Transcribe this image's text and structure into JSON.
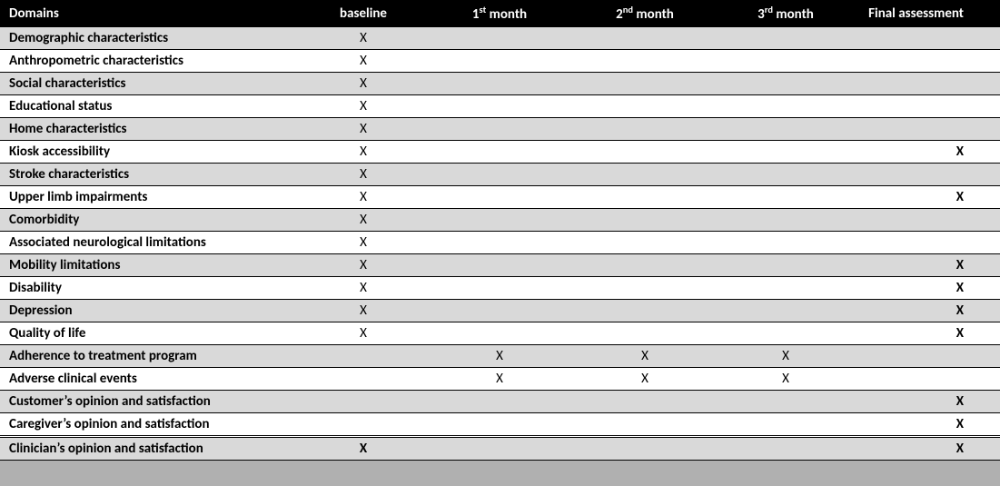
{
  "table": {
    "background_shaded": "#d9d9d9",
    "background_plain": "#ffffff",
    "header_bg": "#000000",
    "header_fg": "#ffffff",
    "mark": "X",
    "columns": [
      {
        "key": "domain",
        "label": "Domains",
        "class": "col-domains"
      },
      {
        "key": "baseline",
        "label": "baseline",
        "class": "col-baseline"
      },
      {
        "key": "m1",
        "label_html": "1<sup>st</sup> month",
        "class": "col-m1"
      },
      {
        "key": "m2",
        "label_html": "2<sup>nd</sup> month",
        "class": "col-m2"
      },
      {
        "key": "m3",
        "label_html": "3<sup>rd</sup> month",
        "class": "col-m3"
      },
      {
        "key": "final",
        "label": "Final assessment",
        "class": "col-final"
      }
    ],
    "rows": [
      {
        "domain": "Demographic characteristics",
        "baseline": true,
        "m1": false,
        "m2": false,
        "m3": false,
        "final": false,
        "final_bold": false,
        "shaded": true
      },
      {
        "domain": "Anthropometric characteristics",
        "baseline": true,
        "m1": false,
        "m2": false,
        "m3": false,
        "final": false,
        "final_bold": false,
        "shaded": false
      },
      {
        "domain": "Social characteristics",
        "baseline": true,
        "m1": false,
        "m2": false,
        "m3": false,
        "final": false,
        "final_bold": false,
        "shaded": true
      },
      {
        "domain": "Educational status",
        "baseline": true,
        "m1": false,
        "m2": false,
        "m3": false,
        "final": false,
        "final_bold": false,
        "shaded": false
      },
      {
        "domain": "Home characteristics",
        "baseline": true,
        "m1": false,
        "m2": false,
        "m3": false,
        "final": false,
        "final_bold": false,
        "shaded": true
      },
      {
        "domain": "Kiosk accessibility",
        "baseline": true,
        "m1": false,
        "m2": false,
        "m3": false,
        "final": true,
        "final_bold": true,
        "shaded": false
      },
      {
        "domain": "Stroke characteristics",
        "baseline": true,
        "m1": false,
        "m2": false,
        "m3": false,
        "final": false,
        "final_bold": false,
        "shaded": true
      },
      {
        "domain": "Upper limb impairments",
        "baseline": true,
        "m1": false,
        "m2": false,
        "m3": false,
        "final": true,
        "final_bold": true,
        "shaded": false
      },
      {
        "domain": "Comorbidity",
        "baseline": true,
        "m1": false,
        "m2": false,
        "m3": false,
        "final": false,
        "final_bold": false,
        "shaded": true
      },
      {
        "domain": "Associated neurological limitations",
        "baseline": true,
        "m1": false,
        "m2": false,
        "m3": false,
        "final": false,
        "final_bold": false,
        "shaded": false
      },
      {
        "domain": "Mobility limitations",
        "baseline": true,
        "m1": false,
        "m2": false,
        "m3": false,
        "final": true,
        "final_bold": true,
        "shaded": true
      },
      {
        "domain": "Disability",
        "baseline": true,
        "m1": false,
        "m2": false,
        "m3": false,
        "final": true,
        "final_bold": true,
        "shaded": false
      },
      {
        "domain": "Depression",
        "baseline": true,
        "m1": false,
        "m2": false,
        "m3": false,
        "final": true,
        "final_bold": true,
        "shaded": true
      },
      {
        "domain": "Quality of life",
        "baseline": true,
        "m1": false,
        "m2": false,
        "m3": false,
        "final": true,
        "final_bold": true,
        "shaded": false
      },
      {
        "domain": "Adherence to treatment program",
        "baseline": false,
        "m1": true,
        "m2": true,
        "m3": true,
        "final": false,
        "final_bold": false,
        "shaded": true
      },
      {
        "domain": "Adverse clinical events",
        "baseline": false,
        "m1": true,
        "m2": true,
        "m3": true,
        "final": false,
        "final_bold": false,
        "shaded": false
      },
      {
        "domain": "Customer’s opinion and satisfaction",
        "baseline": false,
        "m1": false,
        "m2": false,
        "m3": false,
        "final": true,
        "final_bold": true,
        "shaded": true
      },
      {
        "domain": "Caregiver’s opinion and satisfaction",
        "baseline": false,
        "m1": false,
        "m2": false,
        "m3": false,
        "final": true,
        "final_bold": true,
        "shaded": false
      },
      {
        "domain": "Clinician’s opinion and satisfaction",
        "baseline": true,
        "baseline_bold": true,
        "m1": false,
        "m2": false,
        "m3": false,
        "final": true,
        "final_bold": true,
        "shaded": true,
        "dbl_top": true
      }
    ]
  }
}
